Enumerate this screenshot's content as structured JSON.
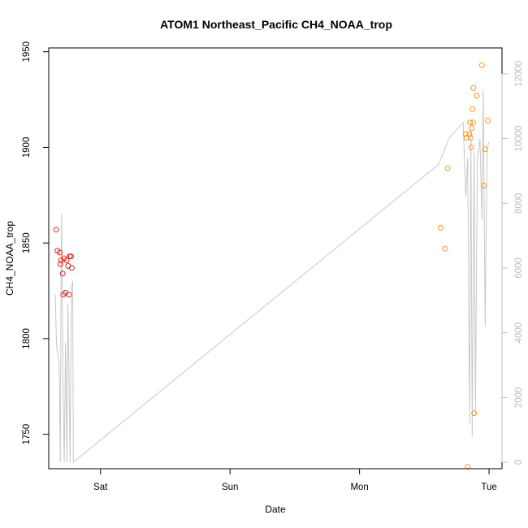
{
  "chart_data": {
    "type": "scatter",
    "title": "ATOM1 Northeast_Pacific CH4_NOAA_trop",
    "xlabel": "Date",
    "ylabel": "CH4_NOAA_trop",
    "x_ticks": [
      {
        "label": "Sat",
        "value": 1.0
      },
      {
        "label": "Sun",
        "value": 2.0
      },
      {
        "label": "Mon",
        "value": 3.0
      },
      {
        "label": "Tue",
        "value": 4.0
      }
    ],
    "xlim": [
      0.6,
      4.1
    ],
    "ylim": [
      1732,
      1952
    ],
    "y_ticks": [
      1750,
      1800,
      1850,
      1900,
      1950
    ],
    "y2lim": [
      -200,
      12800
    ],
    "y2_ticks": [
      0,
      2000,
      4000,
      6000,
      8000,
      10000,
      12000
    ],
    "grid": false,
    "colors": {
      "series_1": "#e2231a",
      "series_2": "#f7941d",
      "altitude_line": "#c8c8c8"
    },
    "series": [
      {
        "color": "#e2231a",
        "points": [
          {
            "x": 0.657,
            "y": 1857
          },
          {
            "x": 0.668,
            "y": 1846
          },
          {
            "x": 0.685,
            "y": 1845
          },
          {
            "x": 0.69,
            "y": 1839
          },
          {
            "x": 0.695,
            "y": 1841
          },
          {
            "x": 0.708,
            "y": 1834
          },
          {
            "x": 0.712,
            "y": 1823
          },
          {
            "x": 0.718,
            "y": 1842
          },
          {
            "x": 0.73,
            "y": 1824
          },
          {
            "x": 0.738,
            "y": 1841
          },
          {
            "x": 0.75,
            "y": 1838
          },
          {
            "x": 0.757,
            "y": 1823
          },
          {
            "x": 0.762,
            "y": 1843
          },
          {
            "x": 0.772,
            "y": 1843
          },
          {
            "x": 0.778,
            "y": 1837
          }
        ]
      },
      {
        "color": "#f7941d",
        "points": [
          {
            "x": 3.625,
            "y": 1858
          },
          {
            "x": 3.66,
            "y": 1847
          },
          {
            "x": 3.68,
            "y": 1889
          },
          {
            "x": 3.82,
            "y": 1907
          },
          {
            "x": 3.825,
            "y": 1905
          },
          {
            "x": 3.835,
            "y": 1733
          },
          {
            "x": 3.848,
            "y": 1907
          },
          {
            "x": 3.853,
            "y": 1913
          },
          {
            "x": 3.858,
            "y": 1905
          },
          {
            "x": 3.862,
            "y": 1900
          },
          {
            "x": 3.866,
            "y": 1910
          },
          {
            "x": 3.872,
            "y": 1920
          },
          {
            "x": 3.877,
            "y": 1913
          },
          {
            "x": 3.88,
            "y": 1931
          },
          {
            "x": 3.885,
            "y": 1761
          },
          {
            "x": 3.905,
            "y": 1927
          },
          {
            "x": 3.945,
            "y": 1943
          },
          {
            "x": 3.96,
            "y": 1880
          },
          {
            "x": 3.97,
            "y": 1899
          },
          {
            "x": 3.99,
            "y": 1914
          }
        ]
      }
    ],
    "altitude_line": [
      {
        "x": 0.65,
        "y": 5200
      },
      {
        "x": 0.66,
        "y": 3600
      },
      {
        "x": 0.68,
        "y": 3000
      },
      {
        "x": 0.69,
        "y": 0
      },
      {
        "x": 0.695,
        "y": 5400
      },
      {
        "x": 0.7,
        "y": 7700
      },
      {
        "x": 0.71,
        "y": 2600
      },
      {
        "x": 0.72,
        "y": 0
      },
      {
        "x": 0.73,
        "y": 3700
      },
      {
        "x": 0.74,
        "y": 0
      },
      {
        "x": 0.748,
        "y": 4900
      },
      {
        "x": 0.755,
        "y": 3200
      },
      {
        "x": 0.765,
        "y": 0
      },
      {
        "x": 0.775,
        "y": 5400
      },
      {
        "x": 0.785,
        "y": 5600
      },
      {
        "x": 0.79,
        "y": 0
      },
      {
        "x": 3.61,
        "y": 9200
      },
      {
        "x": 3.69,
        "y": 10000
      },
      {
        "x": 3.8,
        "y": 10500
      },
      {
        "x": 3.82,
        "y": 8200
      },
      {
        "x": 3.835,
        "y": 9400
      },
      {
        "x": 3.85,
        "y": 1200
      },
      {
        "x": 3.86,
        "y": 10300
      },
      {
        "x": 3.87,
        "y": 800
      },
      {
        "x": 3.885,
        "y": 9600
      },
      {
        "x": 3.895,
        "y": 1500
      },
      {
        "x": 3.91,
        "y": 9400
      },
      {
        "x": 3.93,
        "y": 10000
      },
      {
        "x": 3.945,
        "y": 7500
      },
      {
        "x": 3.955,
        "y": 11500
      },
      {
        "x": 3.97,
        "y": 4200
      },
      {
        "x": 3.985,
        "y": 9700
      },
      {
        "x": 4.0,
        "y": 9900
      }
    ]
  }
}
